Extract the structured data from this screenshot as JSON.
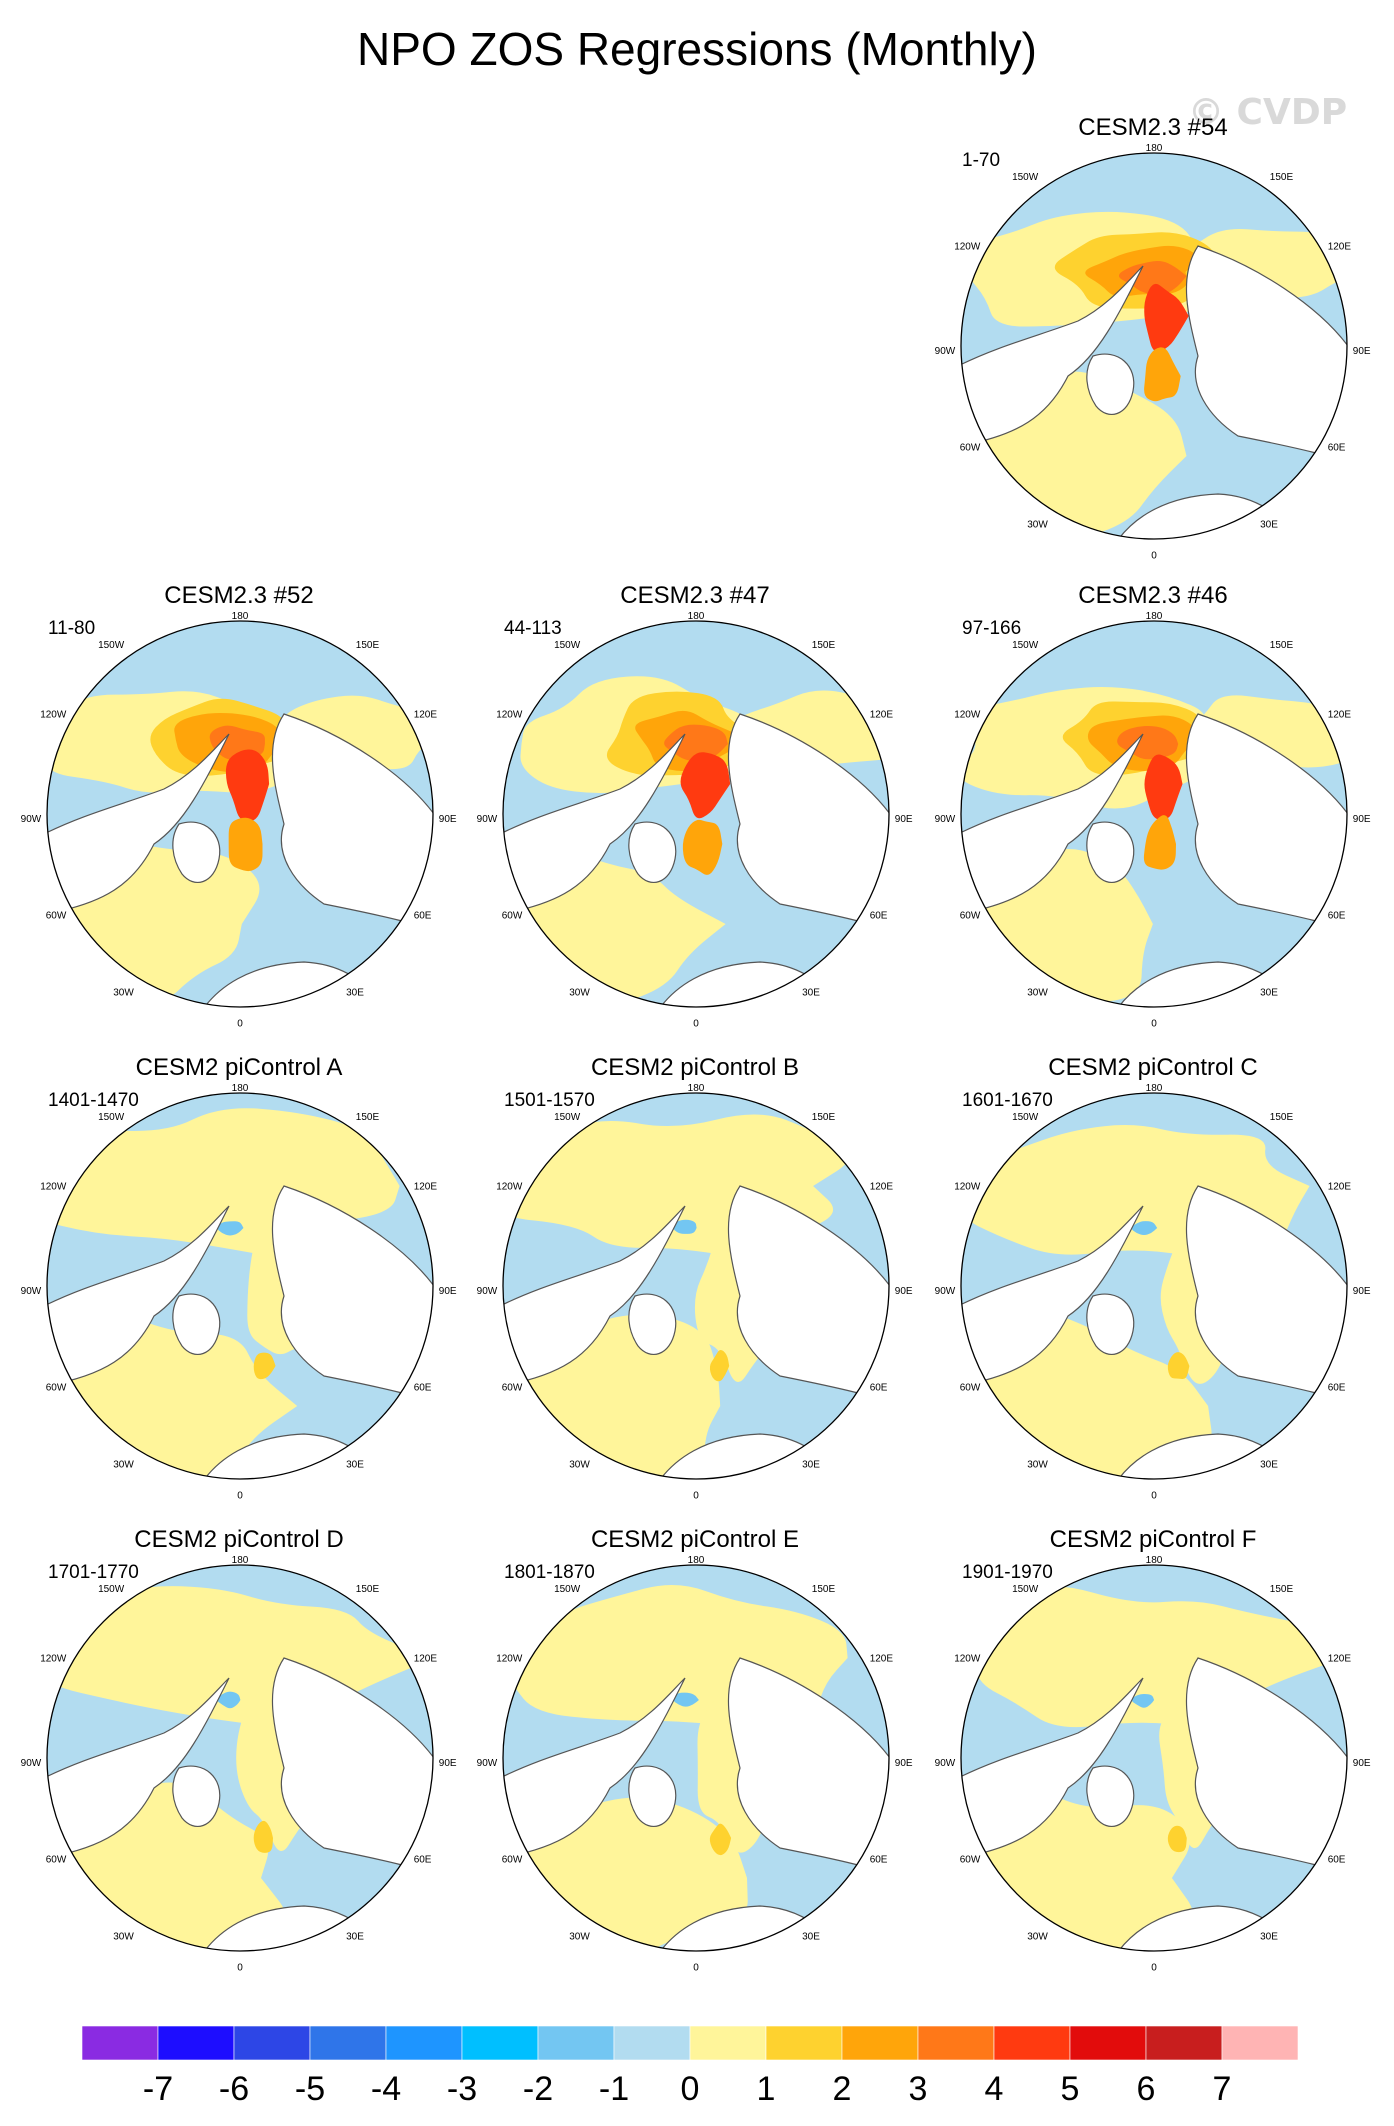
{
  "title": "NPO ZOS Regressions (Monthly)",
  "watermark": "© CVDP",
  "lon_labels": [
    "180",
    "150E",
    "120E",
    "90E",
    "60E",
    "30E",
    "0",
    "30W",
    "60W",
    "90W",
    "120W",
    "150W"
  ],
  "colors": {
    "light_blue": "#b2dcf0",
    "mid_blue": "#73c6f2",
    "light_yellow": "#fff59a",
    "yellow": "#fed22f",
    "orange": "#ffa50a",
    "dark_orange": "#ff7818",
    "red_orange": "#ff3a10",
    "red": "#e20c0c",
    "dark_red": "#c81e1e",
    "land": "#ffffff",
    "coast": "#555555"
  },
  "chart_data": {
    "type": "heatmap",
    "projection": "north-polar-stereographic",
    "variable": "ZOS",
    "colorbar": {
      "tick_labels": [
        "-7",
        "-6",
        "-5",
        "-4",
        "-3",
        "-2",
        "-1",
        "0",
        "1",
        "2",
        "3",
        "4",
        "5",
        "6",
        "7"
      ],
      "boundaries": [
        -7,
        -6,
        -5,
        -4,
        -3,
        -2,
        -1,
        0,
        1,
        2,
        3,
        4,
        5,
        6,
        7
      ],
      "colors": [
        "#8a2be2",
        "#1d0dff",
        "#2d46e6",
        "#2f75e9",
        "#1e95ff",
        "#00bfff",
        "#73c6f2",
        "#b2dcf0",
        "#fff59a",
        "#fed22f",
        "#ffa50a",
        "#ff7818",
        "#ff3a10",
        "#e20c0c",
        "#c81e1e",
        "#ffb4b4"
      ]
    },
    "panels": [
      {
        "name": "CESM2.3 #54",
        "years": "1-70",
        "style": "strong"
      },
      {
        "name": "CESM2.3 #52",
        "years": "11-80",
        "style": "strong"
      },
      {
        "name": "CESM2.3 #47",
        "years": "44-113",
        "style": "strong"
      },
      {
        "name": "CESM2.3 #46",
        "years": "97-166",
        "style": "strong"
      },
      {
        "name": "CESM2 piControl A",
        "years": "1401-1470",
        "style": "weak"
      },
      {
        "name": "CESM2 piControl B",
        "years": "1501-1570",
        "style": "weak"
      },
      {
        "name": "CESM2 piControl C",
        "years": "1601-1670",
        "style": "weak"
      },
      {
        "name": "CESM2 piControl D",
        "years": "1701-1770",
        "style": "weak"
      },
      {
        "name": "CESM2 piControl E",
        "years": "1801-1870",
        "style": "weak"
      },
      {
        "name": "CESM2 piControl F",
        "years": "1901-1970",
        "style": "weak"
      }
    ]
  }
}
